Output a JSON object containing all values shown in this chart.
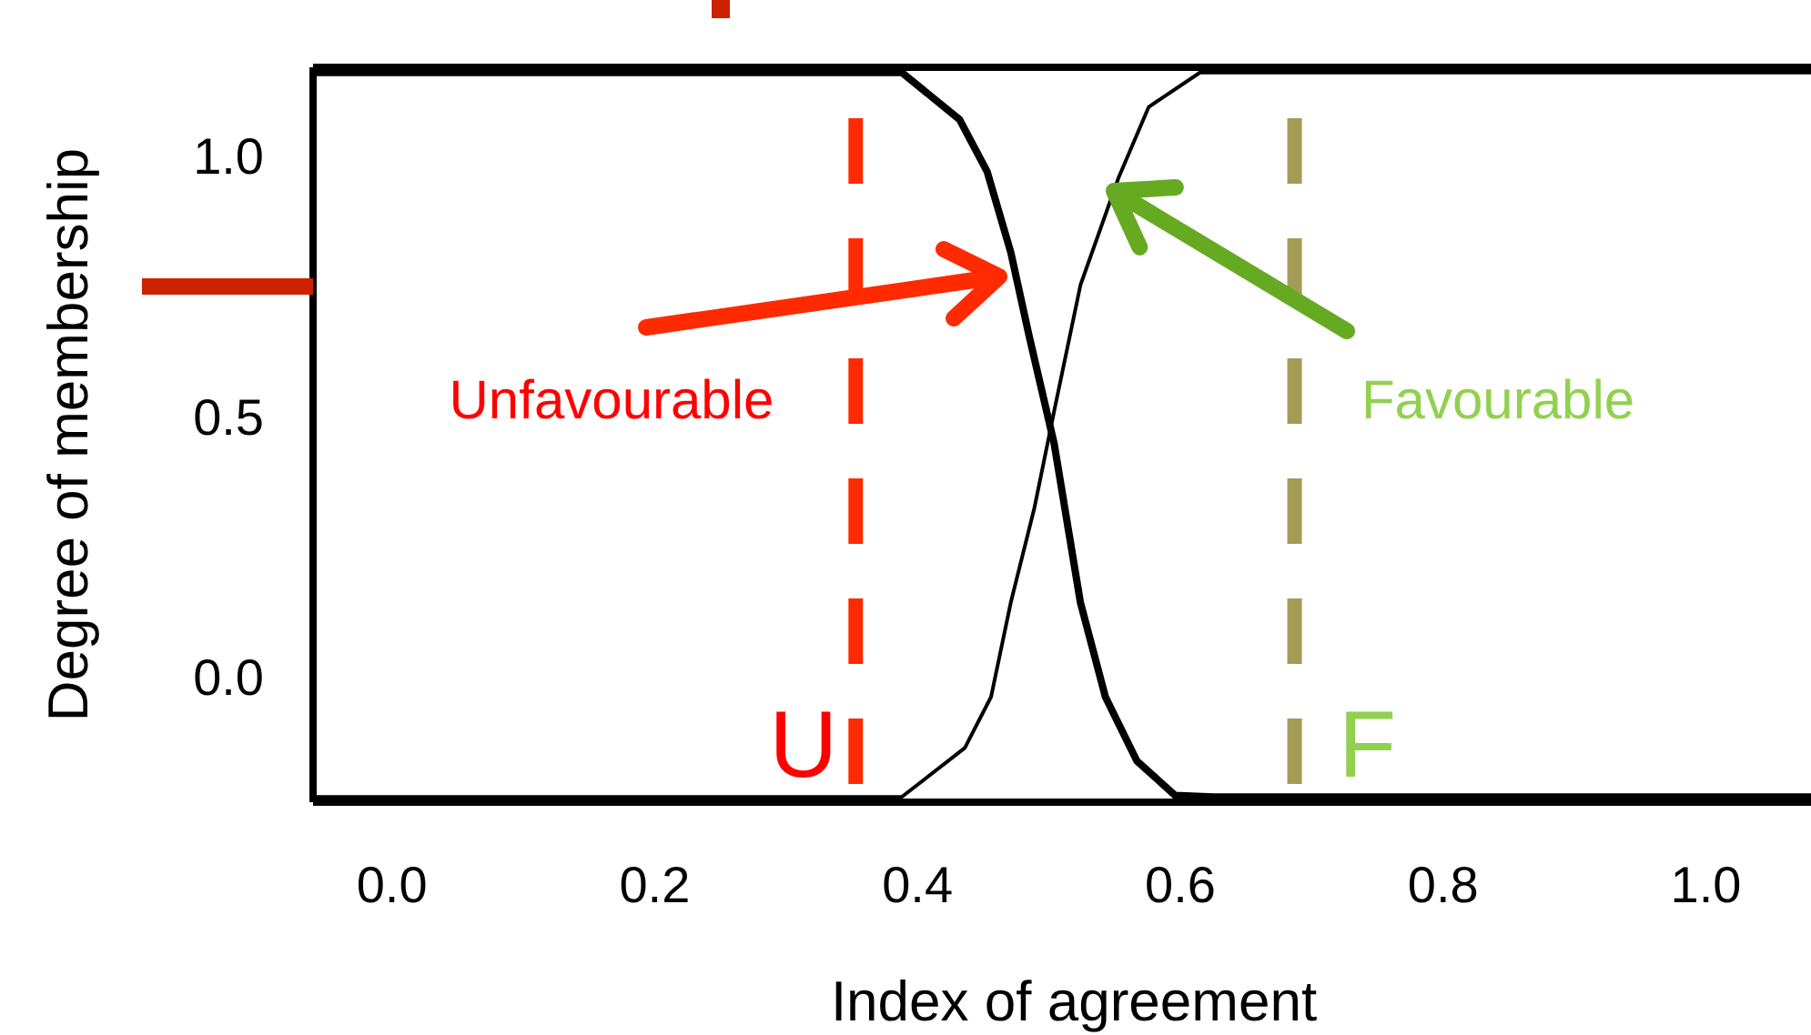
{
  "chart_data": {
    "type": "line",
    "xlabel": "Index of agreement",
    "ylabel": "Degree of membership",
    "xlim": [
      -0.06,
      1.08
    ],
    "ylim": [
      -0.24,
      1.17
    ],
    "xticks": [
      {
        "value": 0,
        "label": "0.0"
      },
      0.2,
      0.4,
      0.6,
      0.8,
      {
        "value": 1,
        "label": "1.0"
      }
    ],
    "yticks": [
      {
        "value": 0,
        "label": "0.0"
      },
      0.5,
      {
        "value": 1,
        "label": "1.0"
      }
    ],
    "grid": false,
    "marker": "none",
    "line_style": "solid",
    "series": [
      {
        "color": "#000000",
        "x": [
          -0.06,
          0.388,
          0.432,
          0.453,
          0.471,
          0.485,
          0.504,
          0.524,
          0.543,
          0.567,
          0.596,
          0.625,
          1.08
        ],
        "values": [
          1.16,
          1.16,
          1.07,
          0.97,
          0.815,
          0.654,
          0.448,
          0.143,
          -0.038,
          -0.161,
          -0.227,
          -0.23,
          -0.23
        ]
      },
      {
        "color": "#000000",
        "x": [
          -0.06,
          0.388,
          0.436,
          0.456,
          0.471,
          0.489,
          0.504,
          0.524,
          0.553,
          0.576,
          0.615,
          1.08
        ],
        "values": [
          -0.23,
          -0.23,
          -0.136,
          -0.038,
          0.143,
          0.325,
          0.51,
          0.752,
          0.958,
          1.094,
          1.16,
          1.16
        ]
      }
    ],
    "ref_lines": [
      {
        "axis": "x",
        "value": 0.353,
        "label": "U",
        "color": "#ff2a00",
        "line_style": "dashed"
      },
      {
        "axis": "x",
        "value": 0.687,
        "label": "F",
        "color": "#a39c56",
        "line_style": "dashed"
      }
    ],
    "annotations": [
      "Unfavourable",
      "Favourable"
    ]
  }
}
